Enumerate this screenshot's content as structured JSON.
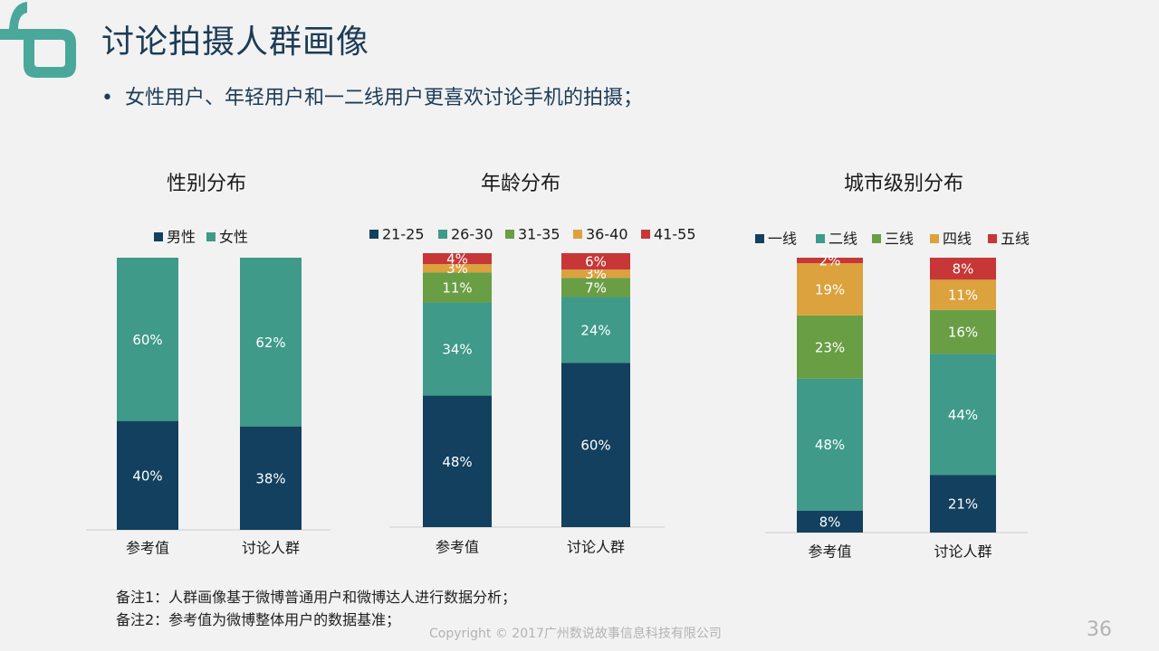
{
  "slide": {
    "title": "讨论拍摄人群画像",
    "bullet": "女性用户、年轻用户和一二线用户更喜欢讨论手机的拍摄；",
    "notes": [
      "备注1：人群画像基于微博普通用户和微博达人进行数据分析；",
      "备注2：参考值为微博整体用户的数据基准；"
    ],
    "copyright": "Copyright © 2017广州数说故事信息科技有限公司",
    "page_number": "36",
    "logo_color": "#4aa89a"
  },
  "chart_data": [
    {
      "type": "bar",
      "stacked": true,
      "title": "性别分布",
      "categories": [
        "参考值",
        "讨论人群"
      ],
      "series": [
        {
          "name": "男性",
          "values": [
            40,
            38
          ],
          "labels": [
            "40%",
            "38%"
          ],
          "color": "#12405e"
        },
        {
          "name": "女性",
          "values": [
            60,
            62
          ],
          "labels": [
            "60%",
            "62%"
          ],
          "color": "#3f9a8a"
        }
      ],
      "legend": "top"
    },
    {
      "type": "bar",
      "stacked": true,
      "title": "年龄分布",
      "categories": [
        "参考值",
        "讨论人群"
      ],
      "series": [
        {
          "name": "21-25",
          "values": [
            48,
            60
          ],
          "labels": [
            "48%",
            "60%"
          ],
          "color": "#12405e"
        },
        {
          "name": "26-30",
          "values": [
            34,
            24
          ],
          "labels": [
            "34%",
            "24%"
          ],
          "color": "#3f9a8a"
        },
        {
          "name": "31-35",
          "values": [
            11,
            7
          ],
          "labels": [
            "11%",
            "7%"
          ],
          "color": "#6a9e45"
        },
        {
          "name": "36-40",
          "values": [
            3,
            3
          ],
          "labels": [
            "3%",
            "3%"
          ],
          "color": "#dba23d"
        },
        {
          "name": "41-55",
          "values": [
            4,
            6
          ],
          "labels": [
            "4%",
            "6%"
          ],
          "color": "#c73737"
        }
      ],
      "legend": "top"
    },
    {
      "type": "bar",
      "stacked": true,
      "title": "城市级别分布",
      "categories": [
        "参考值",
        "讨论人群"
      ],
      "series": [
        {
          "name": "一线",
          "values": [
            8,
            21
          ],
          "labels": [
            "8%",
            "21%"
          ],
          "color": "#12405e"
        },
        {
          "name": "二线",
          "values": [
            48,
            44
          ],
          "labels": [
            "48%",
            "44%"
          ],
          "color": "#3f9a8a"
        },
        {
          "name": "三线",
          "values": [
            23,
            16
          ],
          "labels": [
            "23%",
            "16%"
          ],
          "color": "#6a9e45"
        },
        {
          "name": "四线",
          "values": [
            19,
            11
          ],
          "labels": [
            "19%",
            "11%"
          ],
          "color": "#dba23d"
        },
        {
          "name": "五线",
          "values": [
            2,
            8
          ],
          "labels": [
            "2%",
            "8%"
          ],
          "color": "#c73737"
        }
      ],
      "legend": "top"
    }
  ]
}
